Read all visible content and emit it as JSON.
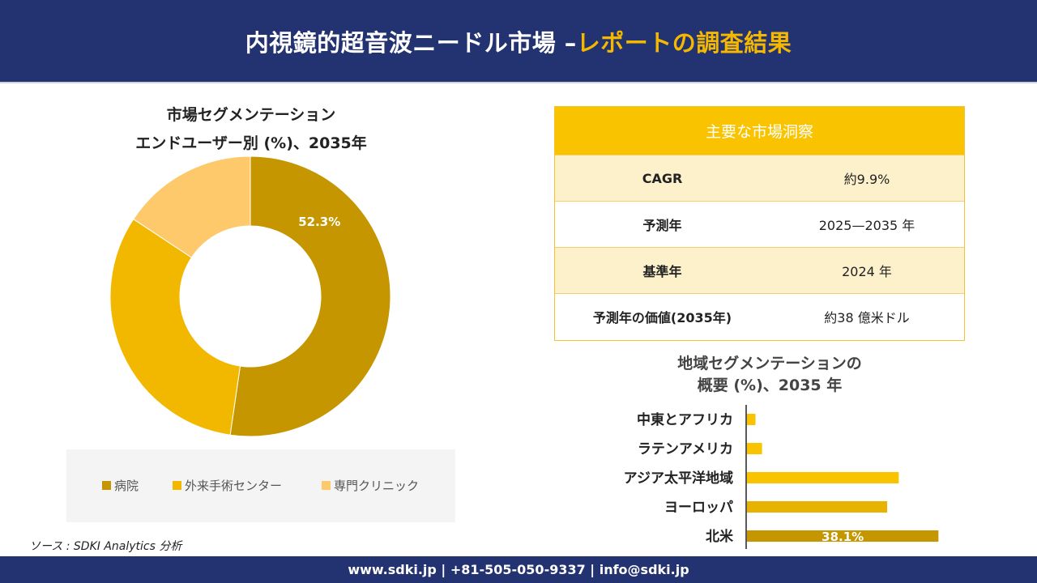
{
  "header": {
    "title_main": "内視鏡的超音波ニードル市場 –",
    "title_accent": "レポートの調査結果"
  },
  "donut": {
    "title_line1": "市場セグメンテーション",
    "title_line2": "エンドユーザー別 (%)、2035年"
  },
  "insights": {
    "heading": "主要な市場洞察",
    "rows": [
      {
        "label": "CAGR",
        "value": "約9.9%"
      },
      {
        "label": "予測年",
        "value": "2025—2035 年"
      },
      {
        "label": "基準年",
        "value": "2024 年"
      },
      {
        "label": "予測年の価値(2035年)",
        "value": "約38 億米ドル"
      }
    ]
  },
  "region": {
    "title_line1": "地域セグメンテーションの",
    "title_line2": "概要 (%)、2035 年"
  },
  "source": "ソース : SDKI Analytics 分析",
  "footer": "www.sdki.jp | +81-505-050-9337 | info@sdki.jp",
  "chart_data": [
    {
      "type": "pie",
      "title": "市場セグメンテーション エンドユーザー別 (%)、2035年",
      "categories": [
        "病院",
        "外来手術センター",
        "専門クリニック"
      ],
      "values": [
        52.3,
        32.0,
        15.7
      ],
      "colors": [
        "#c59600",
        "#f2b800",
        "#fdc96a"
      ],
      "data_labels": [
        "52.3%",
        "",
        ""
      ],
      "legend_position": "bottom"
    },
    {
      "type": "bar",
      "orientation": "horizontal",
      "title": "地域セグメンテーションの 概要 (%)、2035 年",
      "categories": [
        "中東とアフリカ",
        "ラテンアメリカ",
        "アジア太平洋地域",
        "ヨーロッパ",
        "北米"
      ],
      "values": [
        1.7,
        3.0,
        30.2,
        27.9,
        38.1
      ],
      "colors": [
        "#f9c300",
        "#f9c300",
        "#f9c300",
        "#e8b200",
        "#c59600"
      ],
      "data_labels": [
        "",
        "",
        "",
        "",
        "38.1%"
      ],
      "xlim": [
        0,
        40
      ]
    }
  ]
}
